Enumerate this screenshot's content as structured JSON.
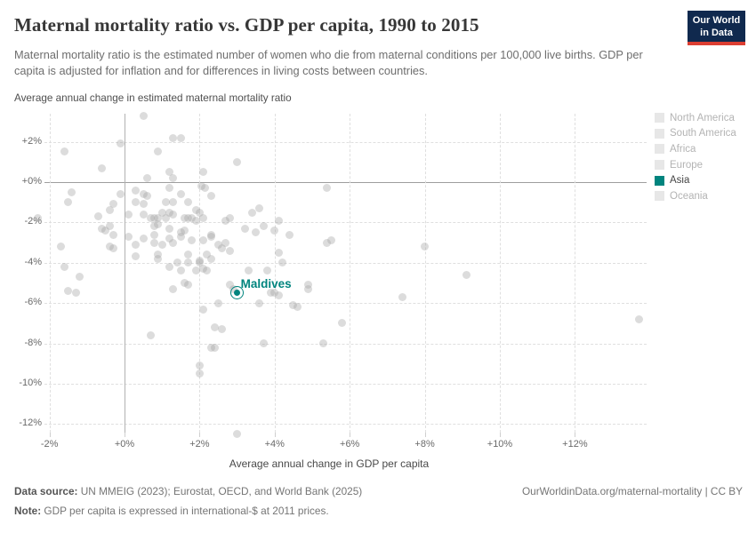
{
  "header": {
    "title": "Maternal mortality ratio vs. GDP per capita, 1990 to 2015",
    "subtitle": "Maternal mortality ratio is the estimated number of women who die from maternal conditions per 100,000 live births. GDP per capita is adjusted for inflation and for differences in living costs between countries.",
    "logo_line1": "Our World",
    "logo_line2": "in Data"
  },
  "chart_data": {
    "type": "scatter",
    "title": "Maternal mortality ratio vs. GDP per capita, 1990 to 2015",
    "xlabel": "Average annual change in GDP per capita",
    "ylabel": "Average annual change in estimated maternal mortality ratio",
    "x_range": [
      -2.3,
      13.9
    ],
    "y_range": [
      -12.7,
      3.5
    ],
    "grid": true,
    "legend_position": "right",
    "x_ticks": [
      {
        "v": -2,
        "label": "-2%"
      },
      {
        "v": 0,
        "label": "+0%"
      },
      {
        "v": 2,
        "label": "+2%"
      },
      {
        "v": 4,
        "label": "+4%"
      },
      {
        "v": 6,
        "label": "+6%"
      },
      {
        "v": 8,
        "label": "+8%"
      },
      {
        "v": 10,
        "label": "+10%"
      },
      {
        "v": 12,
        "label": "+12%"
      }
    ],
    "y_ticks": [
      {
        "v": 2,
        "label": "+2%"
      },
      {
        "v": 0,
        "label": "+0%"
      },
      {
        "v": -2,
        "label": "-2%"
      },
      {
        "v": -4,
        "label": "-4%"
      },
      {
        "v": -6,
        "label": "-6%"
      },
      {
        "v": -8,
        "label": "-8%"
      },
      {
        "v": -10,
        "label": "-10%"
      },
      {
        "v": -12,
        "label": "-12%"
      }
    ],
    "legend": [
      {
        "label": "North America",
        "active": false
      },
      {
        "label": "South America",
        "active": false
      },
      {
        "label": "Africa",
        "active": false
      },
      {
        "label": "Europe",
        "active": false
      },
      {
        "label": "Asia",
        "active": true
      },
      {
        "label": "Oceania",
        "active": false
      }
    ],
    "colors": {
      "highlight": "#00847E",
      "muted_point": "#a3a3a3",
      "inactive_legend": "#b3b3b3"
    },
    "highlight": {
      "label": "Maldives",
      "x": 3.0,
      "y": -5.5
    },
    "points": [
      [
        0.5,
        3.3
      ],
      [
        1.3,
        2.2
      ],
      [
        1.5,
        2.2
      ],
      [
        -0.1,
        1.9
      ],
      [
        -1.6,
        1.5
      ],
      [
        0.9,
        1.5
      ],
      [
        -0.6,
        0.7
      ],
      [
        3.0,
        1.0
      ],
      [
        2.1,
        0.5
      ],
      [
        1.2,
        0.5
      ],
      [
        1.3,
        0.2
      ],
      [
        0.6,
        0.2
      ],
      [
        5.4,
        -0.3
      ],
      [
        2.05,
        -0.2
      ],
      [
        2.15,
        -0.3
      ],
      [
        1.2,
        -0.3
      ],
      [
        -1.4,
        -0.5
      ],
      [
        -1.5,
        -1.0
      ],
      [
        -0.1,
        -0.6
      ],
      [
        -0.3,
        -1.1
      ],
      [
        -0.4,
        -1.4
      ],
      [
        -0.7,
        -1.7
      ],
      [
        -2.3,
        -1.8
      ],
      [
        -0.6,
        -2.3
      ],
      [
        -0.4,
        -2.2
      ],
      [
        -0.5,
        -2.4
      ],
      [
        -0.3,
        -2.6
      ],
      [
        -0.4,
        -3.2
      ],
      [
        -1.7,
        -3.2
      ],
      [
        -0.3,
        -3.3
      ],
      [
        -1.6,
        -4.2
      ],
      [
        -1.2,
        -4.7
      ],
      [
        -1.5,
        -5.4
      ],
      [
        -1.3,
        -5.5
      ],
      [
        0.3,
        -0.4
      ],
      [
        0.5,
        -0.6
      ],
      [
        0.6,
        -0.7
      ],
      [
        0.3,
        -1.0
      ],
      [
        0.5,
        -1.1
      ],
      [
        1.1,
        -1.0
      ],
      [
        1.3,
        -1.0
      ],
      [
        1.5,
        -0.6
      ],
      [
        1.7,
        -1.0
      ],
      [
        2.3,
        -0.7
      ],
      [
        1.9,
        -1.4
      ],
      [
        2.0,
        -1.5
      ],
      [
        1.0,
        -1.5
      ],
      [
        1.2,
        -1.5
      ],
      [
        1.3,
        -1.6
      ],
      [
        0.5,
        -1.6
      ],
      [
        0.1,
        -1.6
      ],
      [
        0.7,
        -1.8
      ],
      [
        0.8,
        -1.8
      ],
      [
        0.9,
        -1.8
      ],
      [
        1.1,
        -1.8
      ],
      [
        1.6,
        -1.8
      ],
      [
        1.7,
        -1.8
      ],
      [
        1.8,
        -1.8
      ],
      [
        1.9,
        -1.9
      ],
      [
        2.1,
        -1.8
      ],
      [
        2.7,
        -1.9
      ],
      [
        2.8,
        -1.8
      ],
      [
        0.8,
        -2.2
      ],
      [
        0.9,
        -2.1
      ],
      [
        1.2,
        -2.3
      ],
      [
        1.5,
        -2.5
      ],
      [
        1.6,
        -2.4
      ],
      [
        0.1,
        -2.7
      ],
      [
        0.5,
        -2.8
      ],
      [
        0.8,
        -2.6
      ],
      [
        1.2,
        -2.8
      ],
      [
        1.5,
        -2.7
      ],
      [
        1.8,
        -2.9
      ],
      [
        2.3,
        -2.6
      ],
      [
        2.3,
        -2.7
      ],
      [
        2.1,
        -2.9
      ],
      [
        3.4,
        -1.5
      ],
      [
        3.6,
        -1.3
      ],
      [
        3.7,
        -2.2
      ],
      [
        3.5,
        -2.5
      ],
      [
        3.2,
        -2.3
      ],
      [
        4.0,
        -2.4
      ],
      [
        4.1,
        -1.9
      ],
      [
        4.4,
        -2.6
      ],
      [
        5.5,
        -2.9
      ],
      [
        0.3,
        -3.1
      ],
      [
        0.8,
        -3.0
      ],
      [
        1.0,
        -3.1
      ],
      [
        1.3,
        -3.0
      ],
      [
        0.3,
        -3.7
      ],
      [
        0.9,
        -3.6
      ],
      [
        0.9,
        -3.8
      ],
      [
        1.7,
        -3.6
      ],
      [
        1.4,
        -4.0
      ],
      [
        1.7,
        -4.0
      ],
      [
        1.2,
        -4.2
      ],
      [
        1.5,
        -4.4
      ],
      [
        2.0,
        -3.9
      ],
      [
        2.0,
        -4.0
      ],
      [
        2.1,
        -4.3
      ],
      [
        2.2,
        -4.4
      ],
      [
        1.9,
        -4.4
      ],
      [
        2.2,
        -3.6
      ],
      [
        2.3,
        -3.8
      ],
      [
        2.5,
        -3.1
      ],
      [
        2.6,
        -3.3
      ],
      [
        2.7,
        -3.0
      ],
      [
        2.8,
        -3.4
      ],
      [
        1.6,
        -5.0
      ],
      [
        1.7,
        -5.1
      ],
      [
        1.3,
        -5.3
      ],
      [
        2.8,
        -5.1
      ],
      [
        2.9,
        -5.3
      ],
      [
        2.5,
        -6.0
      ],
      [
        2.1,
        -6.3
      ],
      [
        5.4,
        -3.0
      ],
      [
        4.1,
        -3.5
      ],
      [
        4.2,
        -4.0
      ],
      [
        3.3,
        -4.4
      ],
      [
        3.8,
        -4.4
      ],
      [
        3.9,
        -5.5
      ],
      [
        4.0,
        -5.5
      ],
      [
        4.1,
        -5.6
      ],
      [
        4.9,
        -5.1
      ],
      [
        4.9,
        -5.3
      ],
      [
        3.6,
        -6.0
      ],
      [
        4.5,
        -6.1
      ],
      [
        0.7,
        -7.6
      ],
      [
        2.4,
        -7.2
      ],
      [
        2.6,
        -7.3
      ],
      [
        2.3,
        -8.2
      ],
      [
        2.4,
        -8.2
      ],
      [
        3.7,
        -8.0
      ],
      [
        5.3,
        -8.0
      ],
      [
        5.8,
        -7.0
      ],
      [
        2.0,
        -9.1
      ],
      [
        2.0,
        -9.5
      ],
      [
        3.0,
        -12.5
      ],
      [
        4.6,
        -6.2
      ],
      [
        8.0,
        -3.2
      ],
      [
        9.1,
        -4.6
      ],
      [
        7.4,
        -5.7
      ],
      [
        13.7,
        -6.8
      ]
    ]
  },
  "footer": {
    "source_prefix": "Data source:",
    "source_text": " UN MMEIG (2023); Eurostat, OECD, and World Bank (2025)",
    "note_prefix": "Note:",
    "note_text": " GDP per capita is expressed in international-$ at 2011 prices.",
    "attribution": "OurWorldinData.org/maternal-mortality | CC BY"
  }
}
